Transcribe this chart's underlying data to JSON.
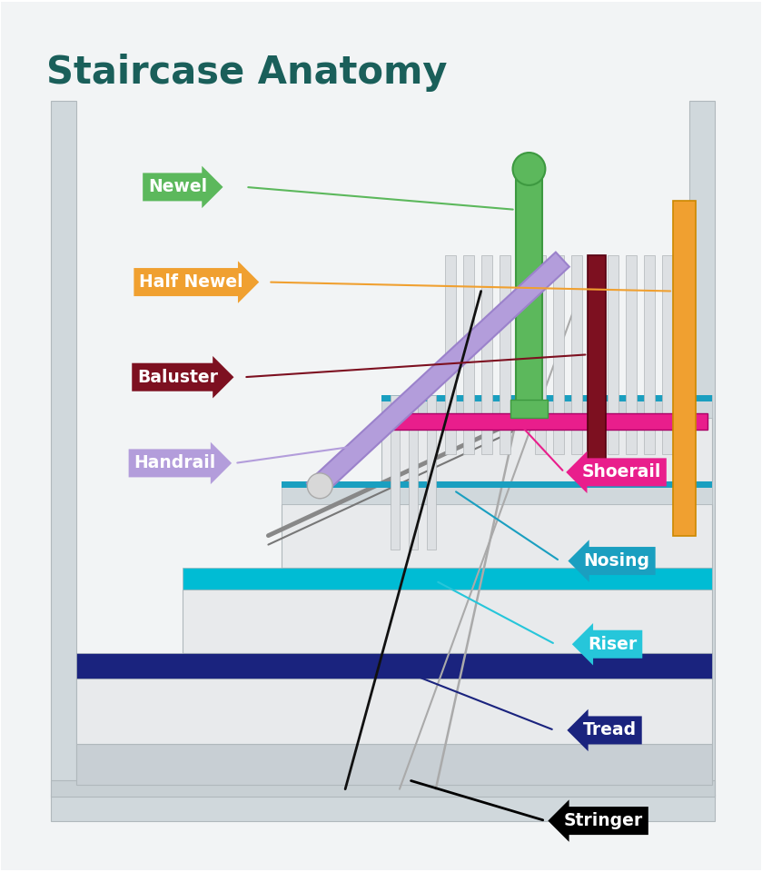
{
  "title": "Staircase Anatomy",
  "title_color": "#1a5f5a",
  "title_fontsize": 30,
  "bg_color": "#ffffff",
  "labels_left": [
    {
      "text": "Newel",
      "color": "#5cb85c",
      "bx": 0.21,
      "by": 0.815
    },
    {
      "text": "Half Newel",
      "color": "#f0a030",
      "bx": 0.235,
      "by": 0.715
    },
    {
      "text": "Baluster",
      "color": "#7d1020",
      "bx": 0.215,
      "by": 0.6
    },
    {
      "text": "Handrail",
      "color": "#b39ddb",
      "bx": 0.205,
      "by": 0.49
    }
  ],
  "labels_right": [
    {
      "text": "Shoerail",
      "color": "#e91e8c",
      "bx": 0.78,
      "by": 0.52
    },
    {
      "text": "Nosing",
      "color": "#00bcd4",
      "bx": 0.775,
      "by": 0.435
    },
    {
      "text": "Riser",
      "color": "#26c6da",
      "bx": 0.765,
      "by": 0.348
    },
    {
      "text": "Tread",
      "color": "#1a237e",
      "bx": 0.765,
      "by": 0.24
    },
    {
      "text": "Stringer",
      "color": "#111111",
      "bx": 0.755,
      "by": 0.1
    }
  ],
  "newel_color": "#5cb85c",
  "half_newel_color": "#f0a030",
  "baluster_hl_color": "#7d1020",
  "handrail_color": "#b39ddb",
  "shoerail_color": "#e91e8c",
  "nosing_color": "#1a9fc0",
  "riser_color": "#26c6da",
  "tread_color": "#1a237e",
  "tread2_color": "#00bcd4",
  "stringer_line_color": "#000000",
  "wall_color": "#d0d8dc",
  "step_body_color": "#e8eaec",
  "step_edge_color": "#b0b8bc"
}
